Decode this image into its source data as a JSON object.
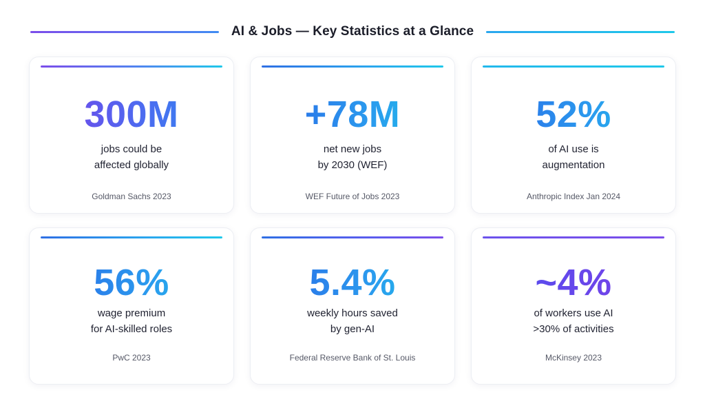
{
  "header": {
    "title": "AI & Jobs — Key Statistics at a Glance"
  },
  "cards": [
    {
      "stat": "300M",
      "line1": "jobs could be",
      "line2": "affected globally",
      "source": "Goldman Sachs 2023"
    },
    {
      "stat": "+78M",
      "line1": "net new jobs",
      "line2": "by 2030 (WEF)",
      "source": "WEF Future of Jobs 2023"
    },
    {
      "stat": "52%",
      "line1": "of AI use is",
      "line2": "augmentation",
      "source": "Anthropic Index Jan 2024"
    },
    {
      "stat": "56%",
      "line1": "wage premium",
      "line2": "for AI-skilled roles",
      "source": "PwC 2023"
    },
    {
      "stat": "5.4%",
      "line1": "weekly hours saved",
      "line2": "by gen-AI",
      "source": "Federal Reserve Bank of St. Louis"
    },
    {
      "stat": "~4%",
      "line1": "of workers use AI",
      "line2": ">30% of activities",
      "source": "McKinsey 2023"
    }
  ],
  "colors": {
    "purple": "#7b4dea",
    "blue": "#2f6fe4",
    "cyan": "#1fc8ea",
    "text": "#1b1d29",
    "muted": "#555866"
  }
}
